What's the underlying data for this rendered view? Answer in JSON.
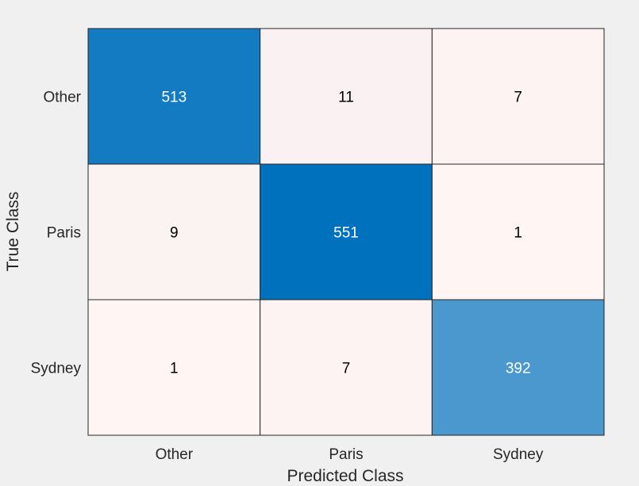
{
  "chart_data": {
    "type": "heatmap",
    "title": "",
    "xlabel": "Predicted Class",
    "ylabel": "True Class",
    "x_categories": [
      "Other",
      "Paris",
      "Sydney"
    ],
    "y_categories": [
      "Other",
      "Paris",
      "Sydney"
    ],
    "values": [
      [
        513,
        11,
        7
      ],
      [
        9,
        551,
        1
      ],
      [
        1,
        7,
        392
      ]
    ],
    "colors": {
      "low": "#fff5f3",
      "high": "#0072bd",
      "grid_line": "#262626",
      "light_text": "#ffffff",
      "dark_text": "#000000",
      "background": "#f0f0f0"
    },
    "grid": true,
    "legend": "none"
  }
}
